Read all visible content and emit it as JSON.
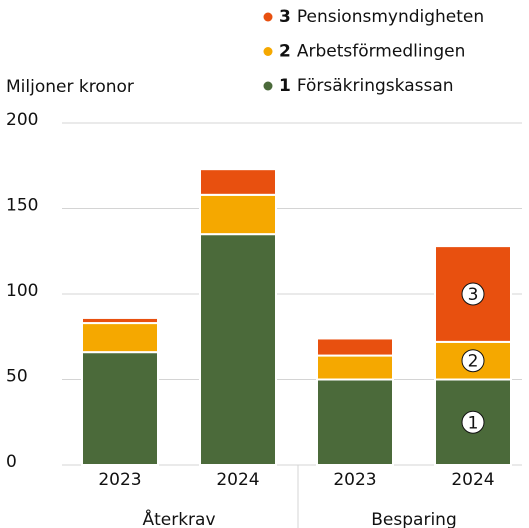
{
  "chart_data": {
    "type": "stacked_bar",
    "y_axis_label": "Miljoner kronor",
    "groups": [
      {
        "name": "Återkrav",
        "categories": [
          "2023",
          "2024"
        ]
      },
      {
        "name": "Besparing",
        "categories": [
          "2023",
          "2024"
        ]
      }
    ],
    "series": [
      {
        "number": "1",
        "name": "Försäkringskassan",
        "color": "#4b6a3a",
        "values": [
          66,
          135,
          50,
          50
        ]
      },
      {
        "number": "2",
        "name": "Arbetsförmedlingen",
        "color": "#f5a800",
        "values": [
          17,
          23,
          14,
          22
        ]
      },
      {
        "number": "3",
        "name": "Pensionsmyndigheten",
        "color": "#e8500f",
        "values": [
          3,
          15,
          10,
          56
        ]
      }
    ],
    "ylim": [
      0,
      200
    ],
    "yticks": [
      0,
      50,
      100,
      150,
      200
    ],
    "grid": true
  }
}
